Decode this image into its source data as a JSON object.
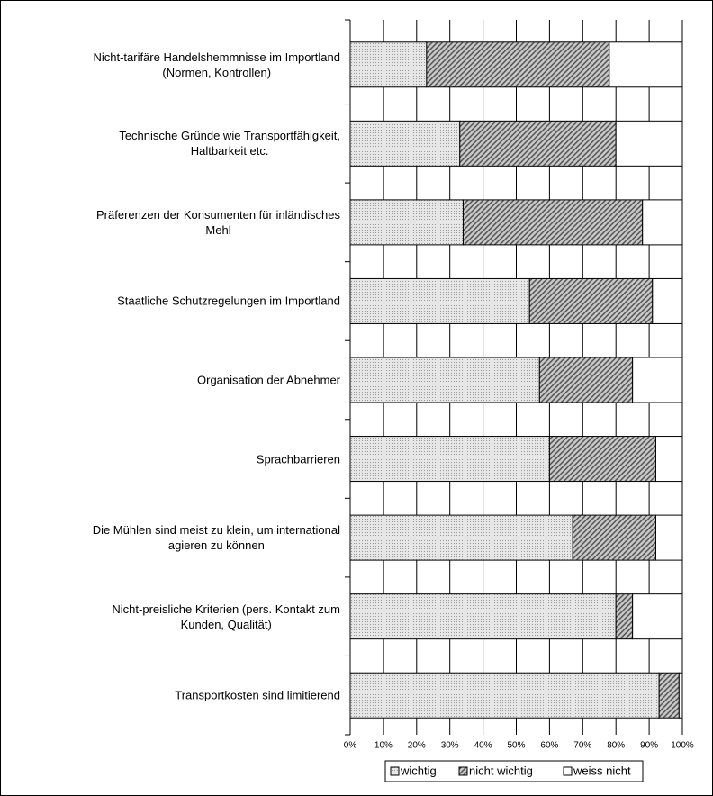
{
  "chart_data": {
    "type": "stacked-bar-horizontal",
    "categories": [
      "Nicht-tarifäre Handelshemmnisse im Importland\n(Normen, Kontrollen)",
      "Technische Gründe wie Transportfähigkeit,\nHaltbarkeit etc.",
      "Präferenzen der Konsumenten für inländisches\nMehl",
      "Staatliche Schutzregelungen im Importland",
      "Organisation der Abnehmer",
      "Sprachbarrieren",
      "Die Mühlen sind meist zu klein, um international\nagieren zu können",
      "Nicht-preisliche Kriterien (pers. Kontakt zum\nKunden, Qualität)",
      "Transportkosten sind limitierend"
    ],
    "series": [
      {
        "name": "wichtig",
        "color": "#d9d9d9",
        "pattern": "dots",
        "values": [
          23,
          33,
          34,
          54,
          57,
          60,
          67,
          80,
          93
        ]
      },
      {
        "name": "nicht wichtig",
        "color": "#a6a6a6",
        "pattern": "hatch",
        "values": [
          55,
          47,
          54,
          37,
          28,
          32,
          25,
          5,
          6
        ]
      },
      {
        "name": "weiss nicht",
        "color": "#ffffff",
        "pattern": "none",
        "values": [
          22,
          20,
          12,
          9,
          15,
          8,
          8,
          15,
          1
        ]
      }
    ],
    "xlim": [
      0,
      100
    ],
    "xticks": [
      {
        "value": 0,
        "label": "0%"
      },
      {
        "value": 10,
        "label": "10%"
      },
      {
        "value": 20,
        "label": "20%"
      },
      {
        "value": 30,
        "label": "30%"
      },
      {
        "value": 40,
        "label": "40%"
      },
      {
        "value": 50,
        "label": "50%"
      },
      {
        "value": 60,
        "label": "60%"
      },
      {
        "value": 70,
        "label": "70%"
      },
      {
        "value": 80,
        "label": "80%"
      },
      {
        "value": 90,
        "label": "90%"
      },
      {
        "value": 100,
        "label": "100%"
      }
    ],
    "grid": true,
    "legend": "bottom"
  }
}
